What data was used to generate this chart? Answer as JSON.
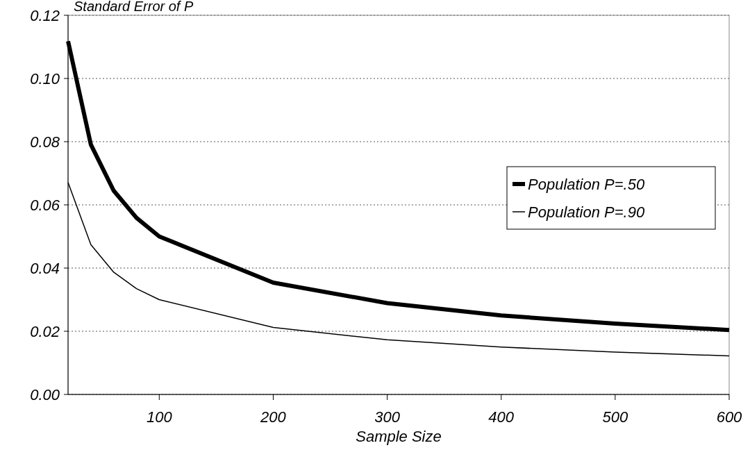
{
  "chart_data": {
    "type": "line",
    "ylabel": "Standard Error of P",
    "xlabel": "Sample Size",
    "x": [
      20,
      40,
      60,
      80,
      100,
      200,
      300,
      400,
      500,
      600
    ],
    "series": [
      {
        "name": "Population P=.50",
        "color": "#000000",
        "values": [
          0.1118,
          0.0791,
          0.0645,
          0.0559,
          0.05,
          0.0354,
          0.0289,
          0.025,
          0.0224,
          0.0204
        ]
      },
      {
        "name": "Population P=.90",
        "color": "#000000",
        "values": [
          0.0671,
          0.0474,
          0.0387,
          0.0335,
          0.03,
          0.0212,
          0.0173,
          0.015,
          0.0134,
          0.0122
        ]
      }
    ],
    "xlim": [
      20,
      600
    ],
    "xticks": [
      100,
      200,
      300,
      400,
      500,
      600
    ],
    "ylim": [
      0,
      0.12
    ],
    "yticks": [
      {
        "value": 0,
        "label": "0.00"
      },
      {
        "value": 0.02,
        "label": "0.02"
      },
      {
        "value": 0.04,
        "label": "0.04"
      },
      {
        "value": 0.06,
        "label": "0.06"
      },
      {
        "value": 0.08,
        "label": "0.08"
      },
      {
        "value": 0.1,
        "label": "0.10"
      },
      {
        "value": 0.12,
        "label": "0.12"
      }
    ],
    "grid": "y",
    "legend": "right",
    "marker": "none",
    "line_style": "solid"
  }
}
